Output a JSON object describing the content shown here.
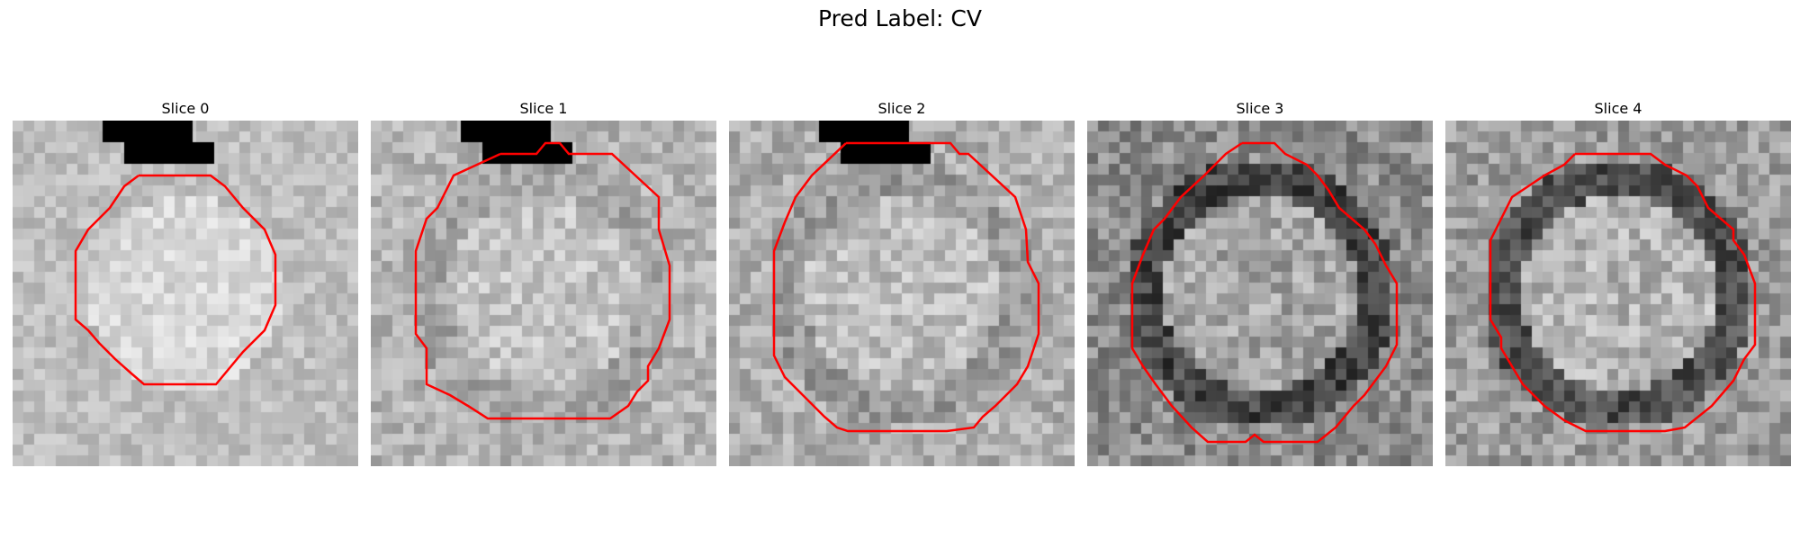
{
  "figure": {
    "title": "Pred Label: CV",
    "contour_color": "#ff0000",
    "slices": [
      {
        "title": "Slice 0",
        "base_gray": 190,
        "ring_gray": 190,
        "inner_gray": 215,
        "noise": 22,
        "black_patch": true,
        "ring_dark": false
      },
      {
        "title": "Slice 1",
        "base_gray": 180,
        "ring_gray": 150,
        "inner_gray": 195,
        "noise": 30,
        "black_patch": true,
        "ring_dark": false
      },
      {
        "title": "Slice 2",
        "base_gray": 175,
        "ring_gray": 135,
        "inner_gray": 190,
        "noise": 32,
        "black_patch": true,
        "ring_dark": false
      },
      {
        "title": "Slice 3",
        "base_gray": 140,
        "ring_gray": 70,
        "inner_gray": 165,
        "noise": 40,
        "black_patch": false,
        "ring_dark": true
      },
      {
        "title": "Slice 4",
        "base_gray": 155,
        "ring_gray": 80,
        "inner_gray": 180,
        "noise": 38,
        "black_patch": false,
        "ring_dark": true
      }
    ]
  }
}
